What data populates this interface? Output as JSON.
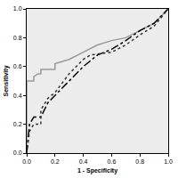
{
  "chart_data": {
    "type": "line",
    "x_label": "1 - Specificity",
    "y_label": "Sensitivity",
    "xlim": [
      0,
      1
    ],
    "ylim": [
      0,
      1
    ],
    "xticks": [
      {
        "value": 0,
        "label": "0.0"
      },
      0.2,
      0.4,
      0.6,
      0.8,
      {
        "value": 1,
        "label": "1.0"
      }
    ],
    "yticks": [
      {
        "value": 0,
        "label": "0.0"
      },
      0.2,
      0.4,
      0.6,
      0.8,
      {
        "value": 1,
        "label": "1.0"
      }
    ],
    "grid": false,
    "series": [
      {
        "color": "#999999",
        "line_style": "solid",
        "x": [
          0,
          0,
          0.05,
          0.05,
          0.08,
          0.1,
          0.1,
          0.2,
          0.2,
          0.3,
          0.4,
          0.5,
          0.6,
          0.7,
          0.8,
          0.9,
          1
        ],
        "values": [
          0,
          0.5,
          0.5,
          0.53,
          0.55,
          0.55,
          0.58,
          0.58,
          0.62,
          0.65,
          0.7,
          0.75,
          0.78,
          0.8,
          0.85,
          0.9,
          1
        ]
      },
      {
        "color": "#000000",
        "line_style": "dashdot",
        "x": [
          0,
          0.02,
          0.05,
          0.1,
          0.15,
          0.2,
          0.3,
          0.4,
          0.5,
          0.6,
          0.7,
          0.8,
          0.9,
          1
        ],
        "values": [
          0,
          0.2,
          0.25,
          0.25,
          0.35,
          0.4,
          0.5,
          0.6,
          0.68,
          0.72,
          0.78,
          0.85,
          0.9,
          1
        ]
      },
      {
        "color": "#333333",
        "line_style": "dot",
        "x": [
          0,
          0.02,
          0.05,
          0.1,
          0.1,
          0.15,
          0.2,
          0.3,
          0.4,
          0.45,
          0.6,
          0.7,
          0.8,
          0.9,
          1
        ],
        "values": [
          0,
          0.15,
          0.2,
          0.2,
          0.3,
          0.38,
          0.42,
          0.55,
          0.65,
          0.68,
          0.7,
          0.75,
          0.82,
          0.88,
          1
        ]
      }
    ]
  }
}
